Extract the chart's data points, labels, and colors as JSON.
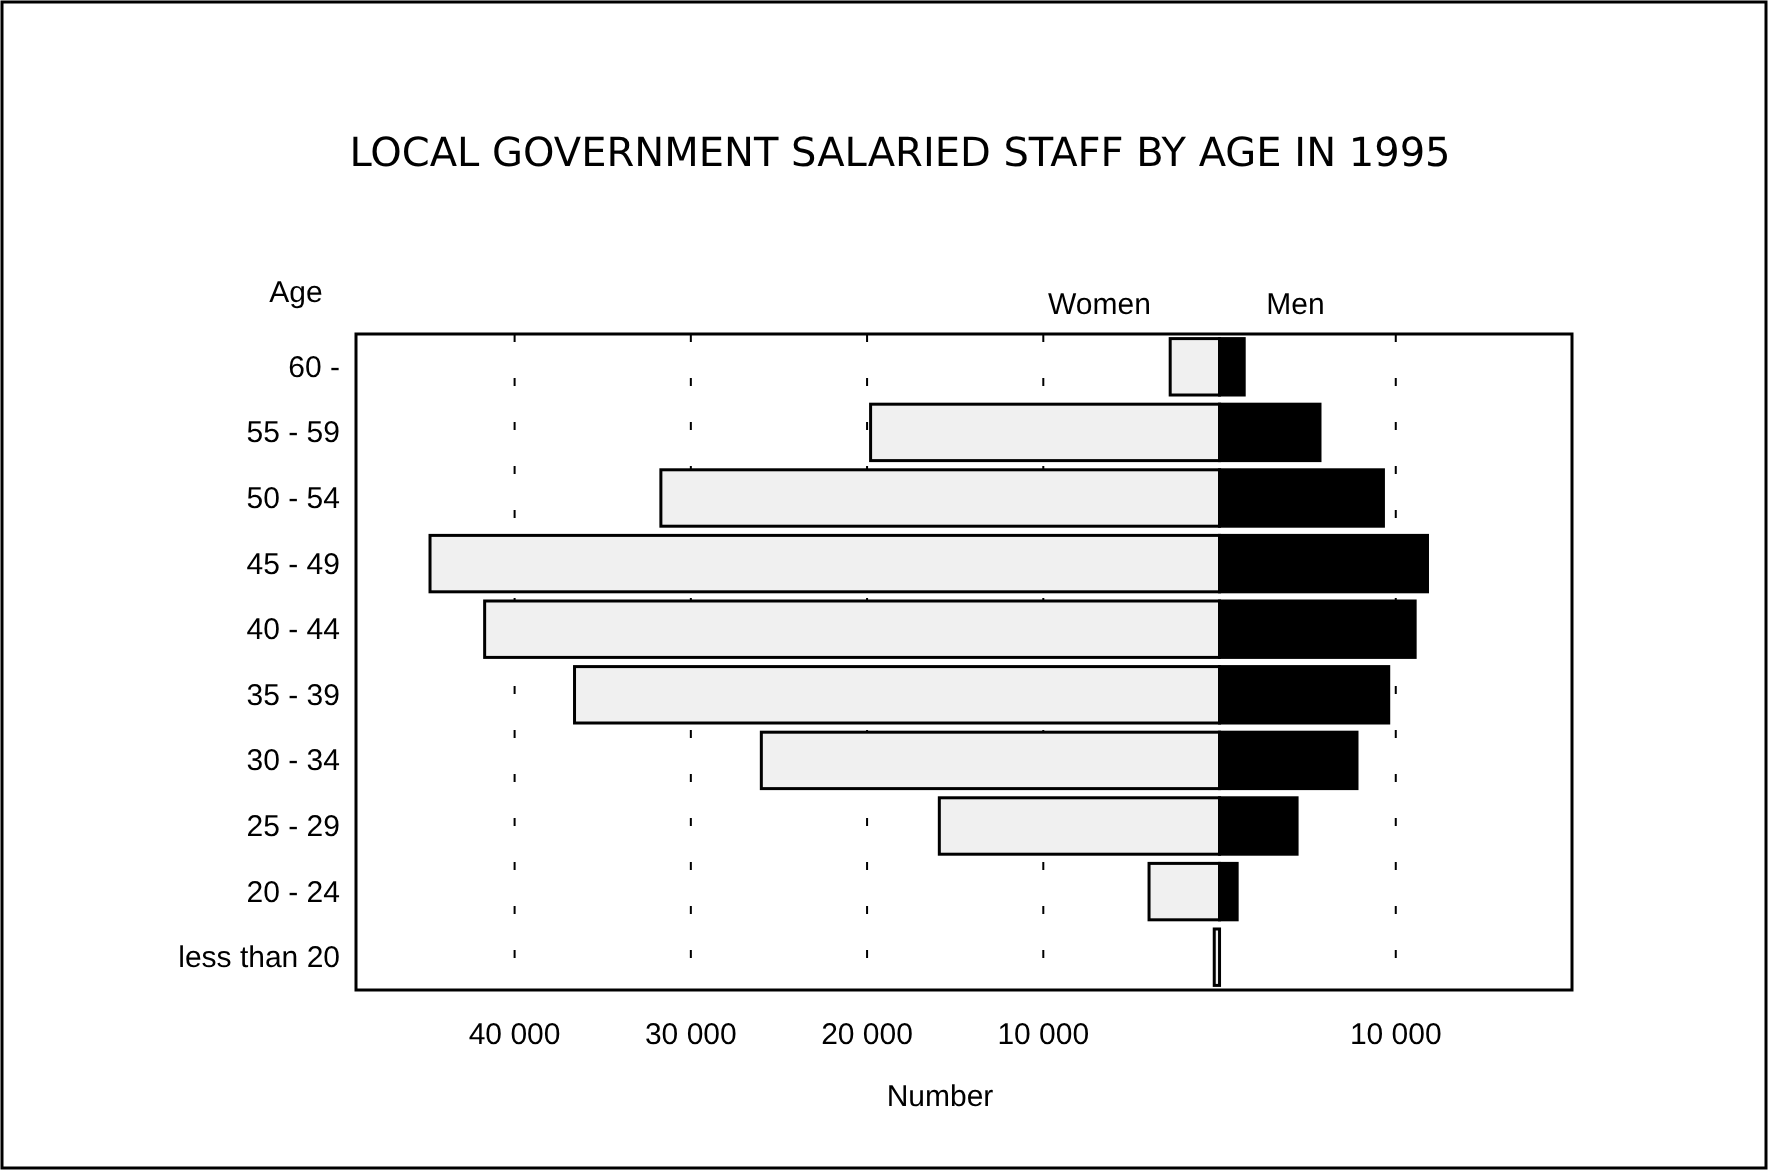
{
  "chart_data": {
    "type": "bar",
    "orientation": "horizontal",
    "stacked": true,
    "title": "LOCAL GOVERNMENT SALARIED STAFF BY AGE IN 1995",
    "xlabel": "Number",
    "ylabel": "Age",
    "categories": [
      "60 -",
      "55 - 59",
      "50 - 54",
      "45 - 49",
      "40 - 44",
      "35 - 39",
      "30 - 34",
      "25 - 29",
      "20 - 24",
      "less than 20"
    ],
    "series": [
      {
        "name": "Women",
        "color": "#f0f0f0",
        "values": [
          -2800,
          -19800,
          -31700,
          -44800,
          -41700,
          -36600,
          -26000,
          -15900,
          -4000,
          -300
        ]
      },
      {
        "name": "Men",
        "color": "#000000",
        "values": [
          1400,
          5700,
          9300,
          11800,
          11100,
          9600,
          7800,
          4400,
          1000,
          0
        ]
      }
    ],
    "xlim": [
      -49000,
      20000
    ],
    "xticks": [
      {
        "value": -40000,
        "label": "40 000"
      },
      {
        "value": -30000,
        "label": "30 000"
      },
      {
        "value": -20000,
        "label": "20 000"
      },
      {
        "value": -10000,
        "label": "10 000"
      },
      {
        "value": 10000,
        "label": "10 000"
      }
    ],
    "grid": "x"
  }
}
